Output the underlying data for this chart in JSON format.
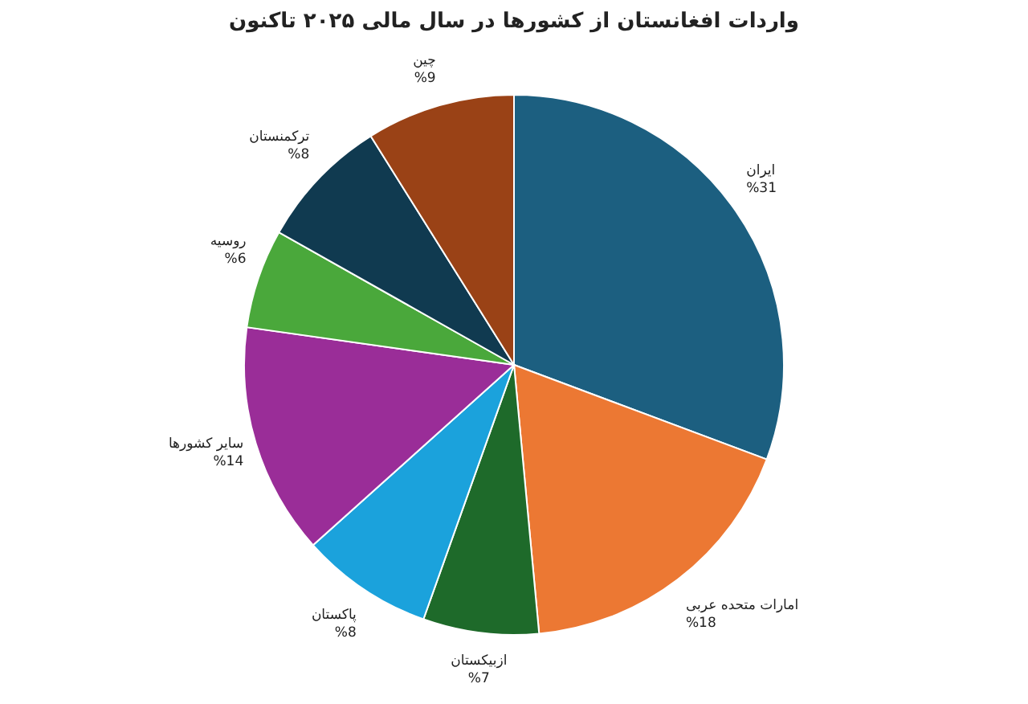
{
  "chart_data": {
    "type": "pie",
    "title": "واردات افغانستان از کشورها در سال مالی ۲۰۲۵ تاکنون",
    "categories": [
      "ایران",
      "امارات متحده عربی",
      "ازبیکستان",
      "پاکستان",
      "سایر کشورها",
      "روسیه",
      "ترکمنستان",
      "چین"
    ],
    "values": [
      31,
      18,
      7,
      8,
      14,
      6,
      8,
      9
    ],
    "value_labels": [
      "%31",
      "%18",
      "%7",
      "%8",
      "%14",
      "%6",
      "%8",
      "%9"
    ],
    "colors": [
      "#1c5f80",
      "#ec7833",
      "#1e6a2a",
      "#1ba2dc",
      "#9a2d98",
      "#4aa83b",
      "#103a50",
      "#9a4216"
    ]
  }
}
